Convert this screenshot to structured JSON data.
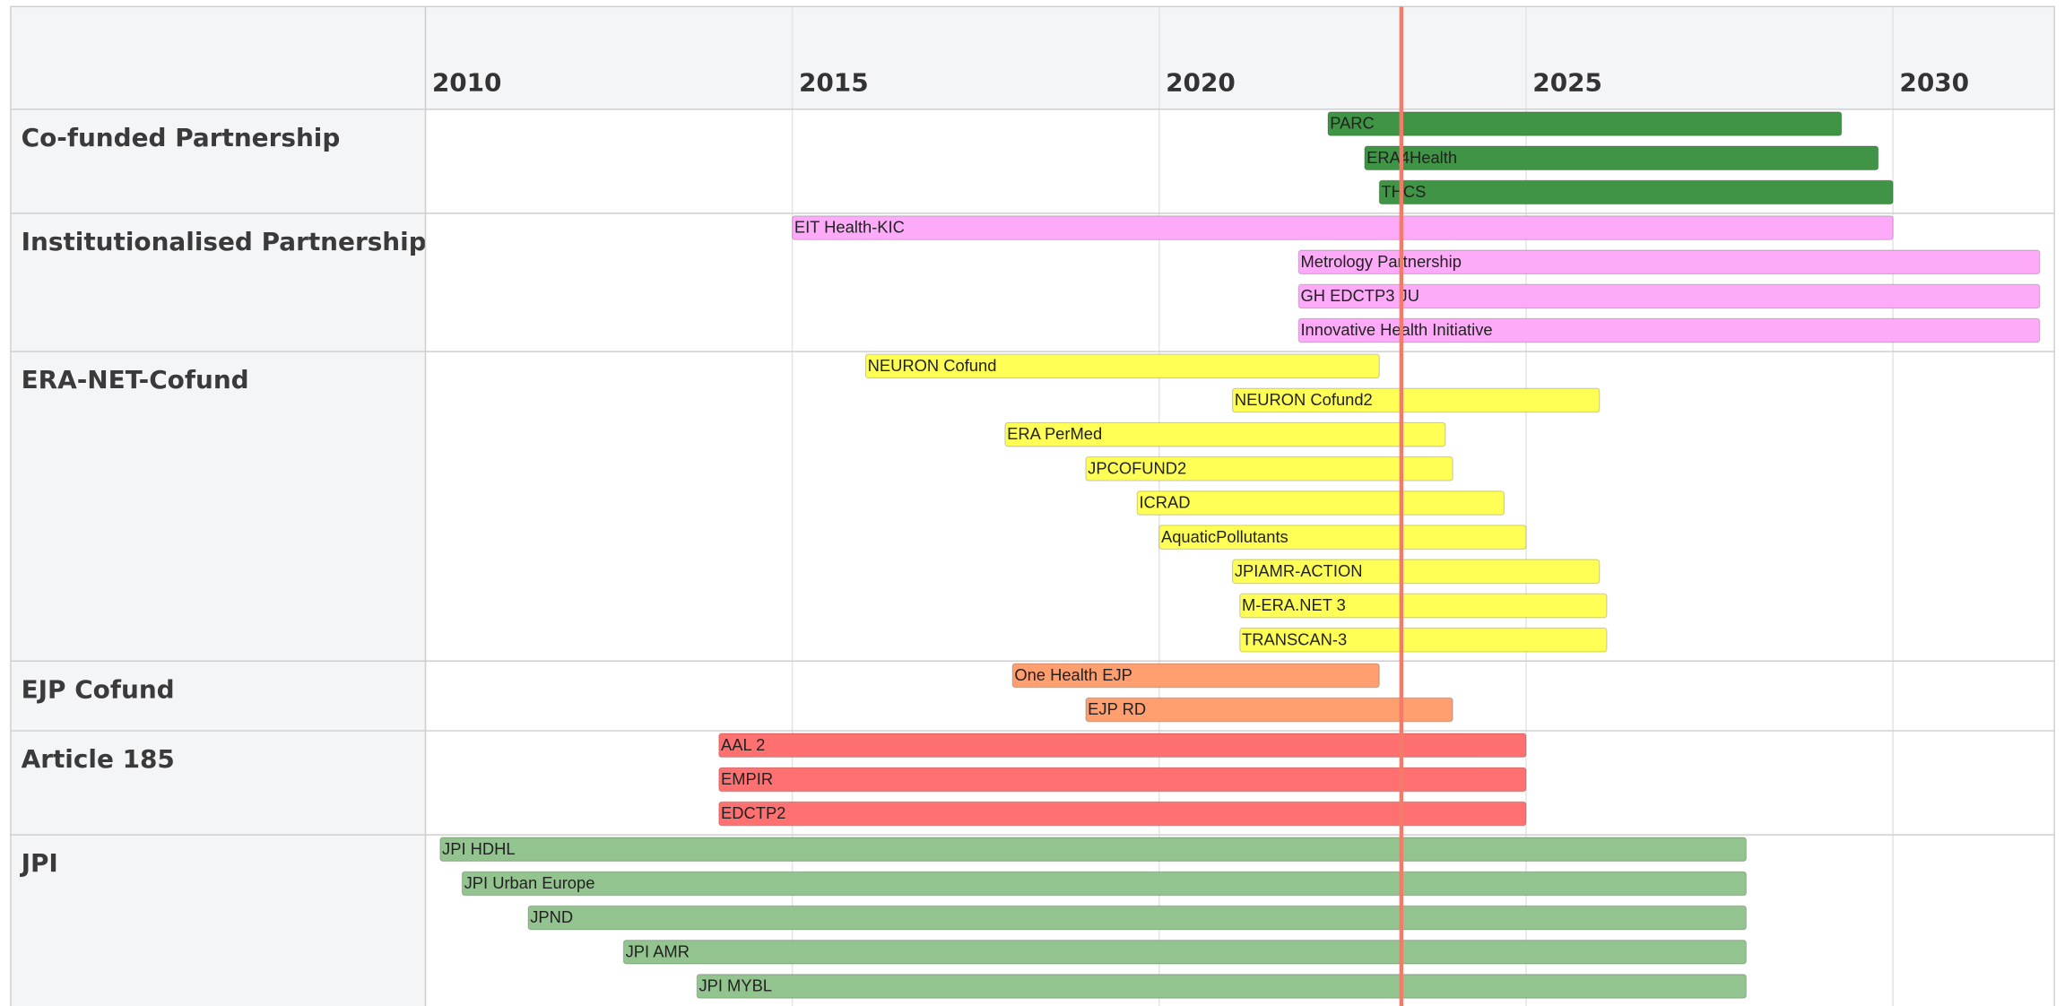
{
  "chart_data": {
    "type": "timeline",
    "xlim": [
      2010,
      2032.2
    ],
    "xticks": [
      2010,
      2015,
      2020,
      2025,
      2030
    ],
    "marker": 2023.3,
    "marker_color": "#f47a6a",
    "grid": true,
    "groups": [
      {
        "name": "Co-funded Partnership",
        "color": "#3f9446",
        "tasks": [
          {
            "name": "PARC",
            "start": 2022.3,
            "end": 2029.3
          },
          {
            "name": "ERA4Health",
            "start": 2022.8,
            "end": 2029.8
          },
          {
            "name": "THCS",
            "start": 2023.0,
            "end": 2030.0
          }
        ]
      },
      {
        "name": "Institutionalised Partnership",
        "color": "#fdaaf8",
        "tasks": [
          {
            "name": "EIT Health-KIC",
            "start": 2015.0,
            "end": 2030.0
          },
          {
            "name": "Metrology Partnership",
            "start": 2021.9,
            "end": 2032.0
          },
          {
            "name": "GH EDCTP3 JU",
            "start": 2021.9,
            "end": 2032.0
          },
          {
            "name": "Innovative Health Initiative",
            "start": 2021.9,
            "end": 2032.0
          }
        ]
      },
      {
        "name": "ERA-NET-Cofund",
        "color": "#ffff55",
        "tasks": [
          {
            "name": "NEURON Cofund",
            "start": 2016.0,
            "end": 2023.0
          },
          {
            "name": "NEURON Cofund2",
            "start": 2021.0,
            "end": 2026.0
          },
          {
            "name": "ERA PerMed",
            "start": 2017.9,
            "end": 2023.9
          },
          {
            "name": "JPCOFUND2",
            "start": 2019.0,
            "end": 2024.0
          },
          {
            "name": "ICRAD",
            "start": 2019.7,
            "end": 2024.7
          },
          {
            "name": "AquaticPollutants",
            "start": 2020.0,
            "end": 2025.0
          },
          {
            "name": "JPIAMR-ACTION",
            "start": 2021.0,
            "end": 2026.0
          },
          {
            "name": "M-ERA.NET 3",
            "start": 2021.1,
            "end": 2026.1
          },
          {
            "name": "TRANSCAN-3",
            "start": 2021.1,
            "end": 2026.1
          }
        ]
      },
      {
        "name": "EJP Cofund",
        "color": "#ff9e6e",
        "tasks": [
          {
            "name": "One Health EJP",
            "start": 2018.0,
            "end": 2023.0
          },
          {
            "name": "EJP RD",
            "start": 2019.0,
            "end": 2024.0
          }
        ]
      },
      {
        "name": "Article 185",
        "color": "#ff7070",
        "tasks": [
          {
            "name": "AAL 2",
            "start": 2014.0,
            "end": 2025.0
          },
          {
            "name": "EMPIR",
            "start": 2014.0,
            "end": 2025.0
          },
          {
            "name": "EDCTP2",
            "start": 2014.0,
            "end": 2025.0
          }
        ]
      },
      {
        "name": "JPI",
        "color": "#93c38e",
        "tasks": [
          {
            "name": "JPI HDHL",
            "start": 2010.2,
            "end": 2028.0
          },
          {
            "name": "JPI Urban Europe",
            "start": 2010.5,
            "end": 2028.0
          },
          {
            "name": "JPND",
            "start": 2011.4,
            "end": 2028.0
          },
          {
            "name": "JPI AMR",
            "start": 2012.7,
            "end": 2028.0
          },
          {
            "name": "JPI MYBL",
            "start": 2013.7,
            "end": 2028.0
          }
        ]
      }
    ]
  }
}
